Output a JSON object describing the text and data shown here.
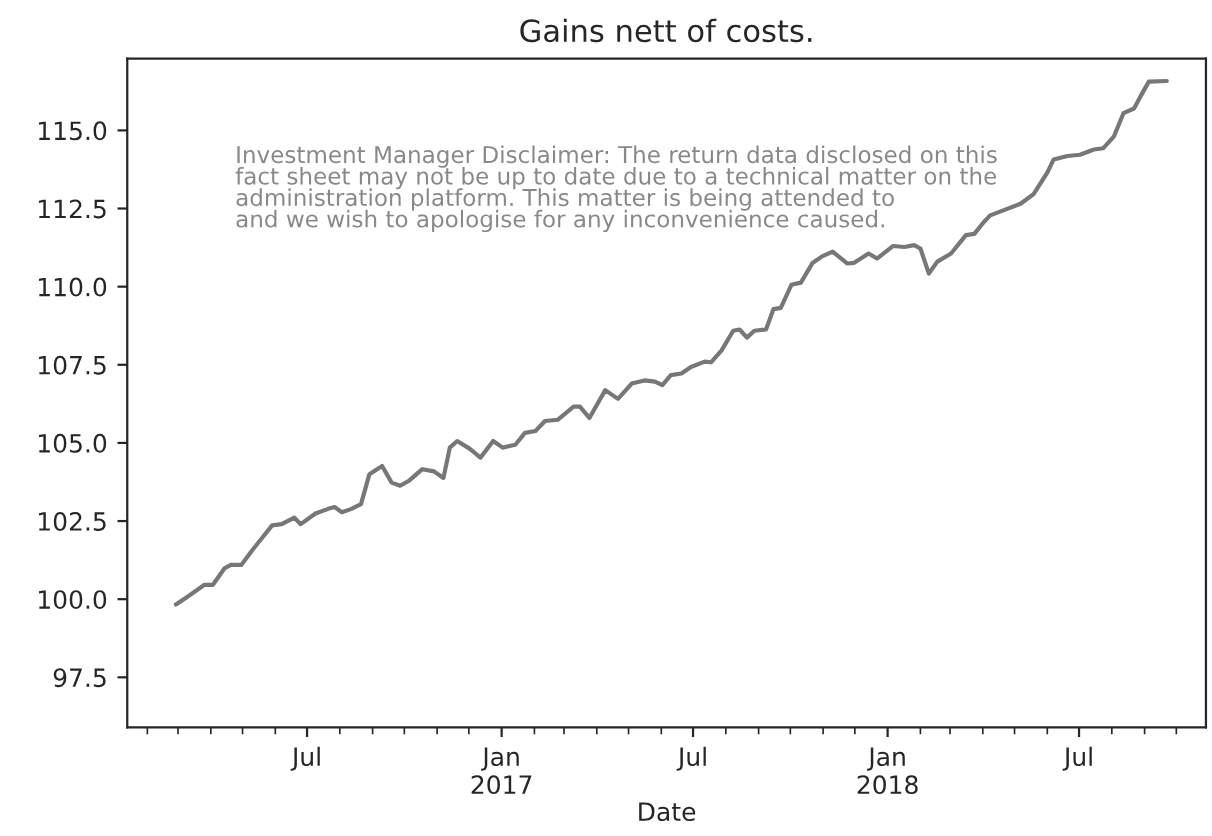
{
  "chart_data": {
    "type": "line",
    "title": "Gains nett of costs.",
    "xlabel": "Date",
    "annotations": [
      "Investment Manager Disclaimer: The return data disclosed on this\nfact sheet may not be up to date due to a technical matter on the\nadministration platform. This matter is being attended to\nand we wish to apologise for any inconvenience caused."
    ],
    "x": [
      "2016-02-28",
      "2016-03-10",
      "2016-03-26",
      "2016-04-03",
      "2016-04-14",
      "2016-04-20",
      "2016-04-30",
      "2016-05-10",
      "2016-05-29",
      "2016-06-07",
      "2016-06-19",
      "2016-06-25",
      "2016-07-09",
      "2016-07-21",
      "2016-07-27",
      "2016-08-03",
      "2016-08-12",
      "2016-08-21",
      "2016-08-29",
      "2016-09-10",
      "2016-09-19",
      "2016-09-27",
      "2016-10-05",
      "2016-10-18",
      "2016-10-29",
      "2016-11-07",
      "2016-11-13",
      "2016-11-20",
      "2016-12-02",
      "2016-12-12",
      "2016-12-24",
      "2017-01-02",
      "2017-01-14",
      "2017-01-23",
      "2017-02-02",
      "2017-02-11",
      "2017-02-23",
      "2017-03-10",
      "2017-03-16",
      "2017-03-25",
      "2017-04-09",
      "2017-04-21",
      "2017-05-04",
      "2017-05-16",
      "2017-05-26",
      "2017-06-02",
      "2017-06-10",
      "2017-06-20",
      "2017-06-29",
      "2017-07-12",
      "2017-07-18",
      "2017-07-28",
      "2017-08-08",
      "2017-08-14",
      "2017-08-21",
      "2017-08-28",
      "2017-09-08",
      "2017-09-15",
      "2017-09-22",
      "2017-10-02",
      "2017-10-11",
      "2017-10-22",
      "2017-10-31",
      "2017-11-10",
      "2017-11-24",
      "2017-11-30",
      "2017-12-14",
      "2017-12-22",
      "2018-01-06",
      "2018-01-17",
      "2018-01-26",
      "2018-02-01",
      "2018-02-09",
      "2018-02-17",
      "2018-03-02",
      "2018-03-16",
      "2018-03-24",
      "2018-04-02",
      "2018-04-08",
      "2018-04-21",
      "2018-05-07",
      "2018-05-19",
      "2018-06-01",
      "2018-06-07",
      "2018-06-20",
      "2018-07-02",
      "2018-07-15",
      "2018-07-24",
      "2018-08-03",
      "2018-08-12",
      "2018-08-22",
      "2018-08-28",
      "2018-09-05",
      "2018-09-22"
    ],
    "series": [
      {
        "color": "#777777",
        "values": [
          99.83,
          100.08,
          100.46,
          100.46,
          100.99,
          101.1,
          101.1,
          101.56,
          102.36,
          102.4,
          102.61,
          102.4,
          102.74,
          102.89,
          102.95,
          102.78,
          102.89,
          103.04,
          104.0,
          104.26,
          103.73,
          103.63,
          103.78,
          104.16,
          104.09,
          103.88,
          104.85,
          105.06,
          104.81,
          104.53,
          105.06,
          104.85,
          104.94,
          105.32,
          105.38,
          105.7,
          105.74,
          106.16,
          106.16,
          105.8,
          106.69,
          106.41,
          106.9,
          107.0,
          106.96,
          106.85,
          107.17,
          107.22,
          107.43,
          107.6,
          107.58,
          107.96,
          108.59,
          108.63,
          108.37,
          108.59,
          108.63,
          109.28,
          109.32,
          110.06,
          110.13,
          110.76,
          110.97,
          111.12,
          110.74,
          110.76,
          111.06,
          110.9,
          111.3,
          111.27,
          111.33,
          111.22,
          110.42,
          110.8,
          111.06,
          111.65,
          111.69,
          112.07,
          112.28,
          112.45,
          112.66,
          112.96,
          113.65,
          114.07,
          114.18,
          114.22,
          114.39,
          114.43,
          114.81,
          115.55,
          115.7,
          116.08,
          116.56,
          116.58
        ]
      }
    ],
    "xlim": [
      "2016-01-13",
      "2018-10-29"
    ],
    "xticks": [
      {
        "value": "2016-02-01",
        "label": null
      },
      {
        "value": "2016-03-01",
        "label": null
      },
      {
        "value": "2016-04-01",
        "label": null
      },
      {
        "value": "2016-05-01",
        "label": null
      },
      {
        "value": "2016-06-01",
        "label": null
      },
      {
        "value": "2016-07-01",
        "label": "Jul"
      },
      {
        "value": "2016-08-01",
        "label": null
      },
      {
        "value": "2016-09-01",
        "label": null
      },
      {
        "value": "2016-10-01",
        "label": null
      },
      {
        "value": "2016-11-01",
        "label": null
      },
      {
        "value": "2016-12-01",
        "label": null
      },
      {
        "value": "2017-01-01",
        "label": "Jan\n2017"
      },
      {
        "value": "2017-02-01",
        "label": null
      },
      {
        "value": "2017-03-01",
        "label": null
      },
      {
        "value": "2017-04-01",
        "label": null
      },
      {
        "value": "2017-05-01",
        "label": null
      },
      {
        "value": "2017-06-01",
        "label": null
      },
      {
        "value": "2017-07-01",
        "label": "Jul"
      },
      {
        "value": "2017-08-01",
        "label": null
      },
      {
        "value": "2017-09-01",
        "label": null
      },
      {
        "value": "2017-10-01",
        "label": null
      },
      {
        "value": "2017-11-01",
        "label": null
      },
      {
        "value": "2017-12-01",
        "label": null
      },
      {
        "value": "2018-01-01",
        "label": "Jan\n2018"
      },
      {
        "value": "2018-02-01",
        "label": null
      },
      {
        "value": "2018-03-01",
        "label": null
      },
      {
        "value": "2018-04-01",
        "label": null
      },
      {
        "value": "2018-05-01",
        "label": null
      },
      {
        "value": "2018-06-01",
        "label": null
      },
      {
        "value": "2018-07-01",
        "label": "Jul"
      },
      {
        "value": "2018-08-01",
        "label": null
      },
      {
        "value": "2018-09-01",
        "label": null
      },
      {
        "value": "2018-10-01",
        "label": null
      }
    ],
    "ylim": [
      95.9,
      117.3
    ],
    "yticks": [
      {
        "value": 97.5,
        "label": "97.5"
      },
      {
        "value": 100,
        "label": "100.0"
      },
      {
        "value": 102.5,
        "label": "102.5"
      },
      {
        "value": 105,
        "label": "105.0"
      },
      {
        "value": 107.5,
        "label": "107.5"
      },
      {
        "value": 110,
        "label": "110.0"
      },
      {
        "value": 112.5,
        "label": "112.5"
      },
      {
        "value": 115,
        "label": "115.0"
      }
    ],
    "grid": false,
    "legend": false
  }
}
